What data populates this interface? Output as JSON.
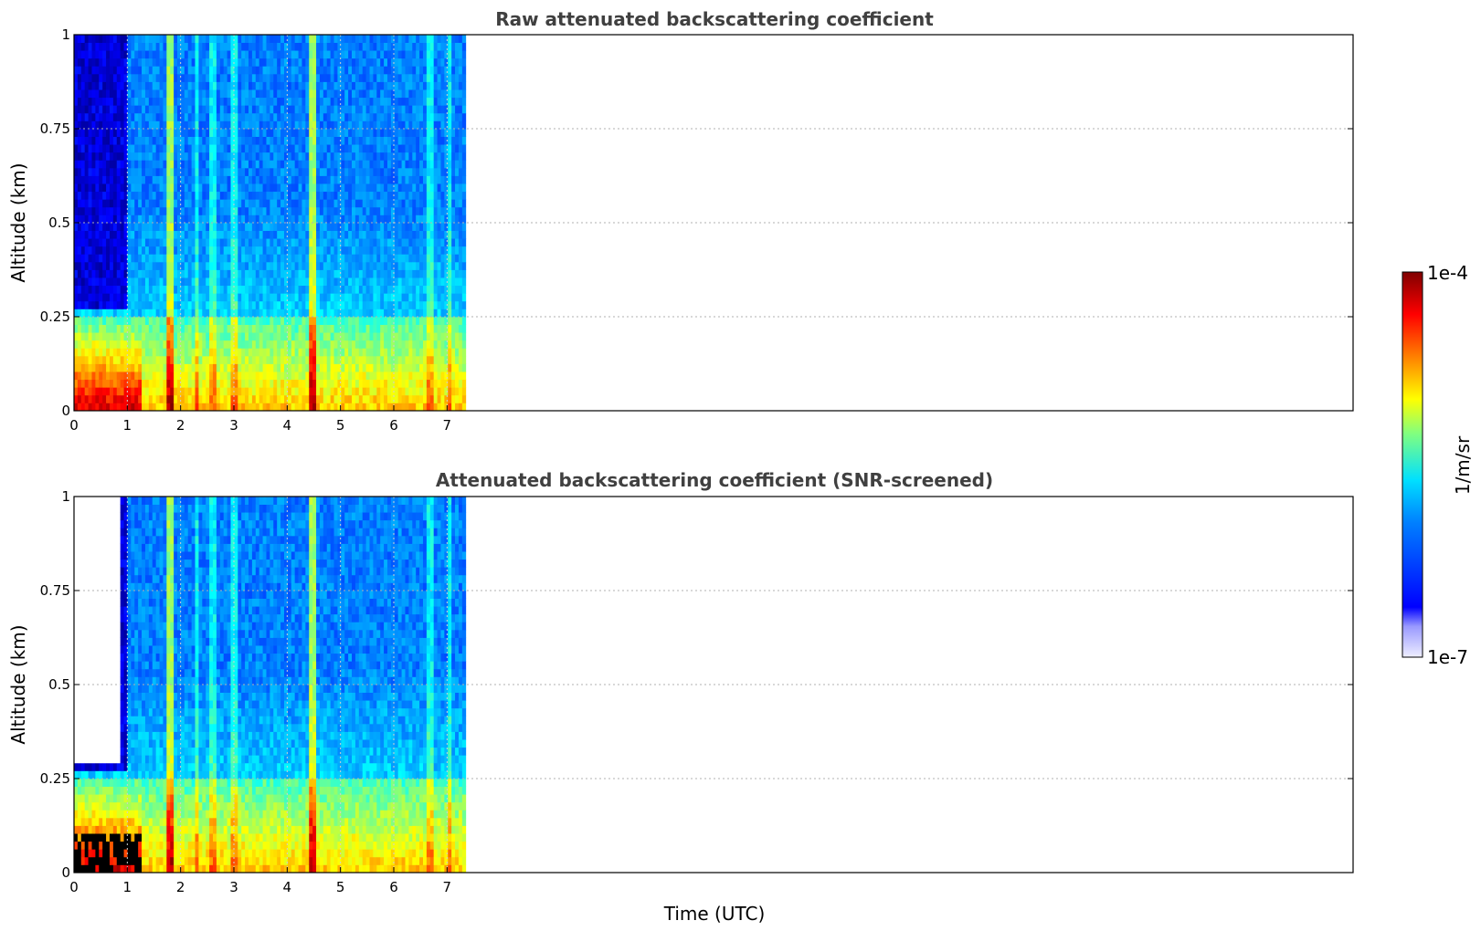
{
  "chart_data": [
    {
      "type": "heatmap",
      "title": "Raw attenuated backscattering coefficient",
      "xlabel": "",
      "ylabel": "Altitude (km)",
      "xlim": [
        0,
        24
      ],
      "ylim": [
        0,
        1
      ],
      "xticks": [
        "0",
        "1",
        "2",
        "3",
        "4",
        "5",
        "6",
        "7"
      ],
      "yticks": [
        "0",
        "0.25",
        "0.5",
        "0.75",
        "1"
      ],
      "data_extent_hours": [
        0,
        7.35
      ],
      "grid": true,
      "screened": false,
      "aerosol_layer_top_km": 0.25,
      "vertical_streaks_hours": [
        1.8,
        2.3,
        2.6,
        3.0,
        4.5,
        6.7,
        7.05
      ]
    },
    {
      "type": "heatmap",
      "title": "Attenuated backscattering coefficient (SNR-screened)",
      "xlabel": "Time (UTC)",
      "ylabel": "Altitude (km)",
      "xlim": [
        0,
        24
      ],
      "ylim": [
        0,
        1
      ],
      "xticks": [
        "0",
        "1",
        "2",
        "3",
        "4",
        "5",
        "6",
        "7"
      ],
      "yticks": [
        "0",
        "0.25",
        "0.5",
        "0.75",
        "1"
      ],
      "data_extent_hours": [
        0,
        7.35
      ],
      "grid": true,
      "screened": true,
      "aerosol_layer_top_km": 0.25,
      "vertical_streaks_hours": [
        1.8,
        2.3,
        2.6,
        3.0,
        4.5,
        6.7,
        7.05
      ]
    }
  ],
  "colorbar": {
    "label": "1/m/sr",
    "min_label": "1e-7",
    "max_label": "1e-4",
    "scale": "log",
    "colormap": "jet"
  }
}
